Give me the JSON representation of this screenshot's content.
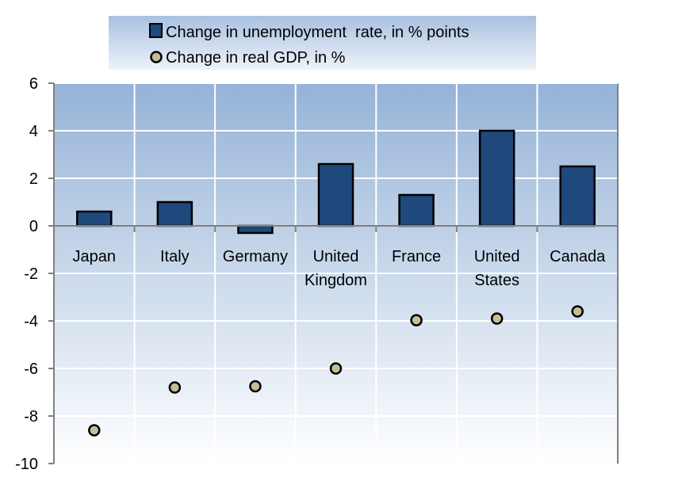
{
  "chart_data": {
    "type": "bar",
    "categories": [
      [
        "Japan"
      ],
      [
        "Italy"
      ],
      [
        "Germany"
      ],
      [
        "United",
        "Kingdom"
      ],
      [
        "France"
      ],
      [
        "United",
        "States"
      ],
      [
        "Canada"
      ]
    ],
    "series": [
      {
        "name": "Change in unemployment  rate, in % points",
        "type": "bar",
        "color": "#1f497d",
        "values": [
          0.6,
          1.0,
          -0.3,
          2.6,
          1.3,
          4.0,
          2.5
        ]
      },
      {
        "name": "Change in real GDP, in %",
        "type": "scatter",
        "color": "#c4bd97",
        "values": [
          -8.6,
          -6.8,
          -6.75,
          -6.0,
          -3.97,
          -3.9,
          -3.6
        ]
      }
    ],
    "ylim": [
      -10,
      6
    ],
    "yticks": [
      6,
      4,
      2,
      0,
      -2,
      -4,
      -6,
      -8,
      -10
    ],
    "grid": true,
    "legend_position": "top",
    "plot_background": [
      "#95b3d7",
      "#ffffff"
    ]
  }
}
